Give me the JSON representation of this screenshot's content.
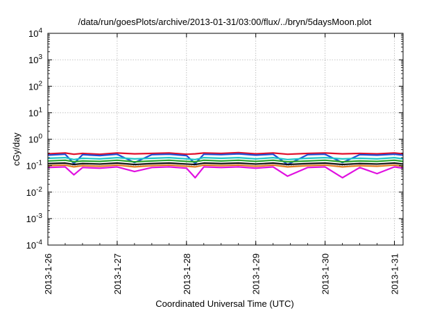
{
  "chart_data": {
    "type": "line",
    "title": "/data/run/goesPlots/archive/2013-01-31/03:00/flux/../bryn/5daysMoon.plot",
    "xlabel": "Coordinated Universal Time (UTC)",
    "ylabel": "cGy/day",
    "x_range": [
      "2013-01-26T00:00",
      "2013-01-31T03:00"
    ],
    "ylim": [
      0.0001,
      10000
    ],
    "y_scale": "log",
    "grid": true,
    "legend": "none",
    "x_ticks": [
      "2013-1-26",
      "2013-1-27",
      "2013-1-28",
      "2013-1-29",
      "2013-1-30",
      "2013-1-31"
    ],
    "y_ticks": [
      {
        "value": 0.0001,
        "base": "10",
        "exp": "-4"
      },
      {
        "value": 0.001,
        "base": "10",
        "exp": "-3"
      },
      {
        "value": 0.01,
        "base": "10",
        "exp": "-2"
      },
      {
        "value": 0.1,
        "base": "10",
        "exp": "-1"
      },
      {
        "value": 1,
        "base": "10",
        "exp": "0"
      },
      {
        "value": 10,
        "base": "10",
        "exp": "1"
      },
      {
        "value": 100,
        "base": "10",
        "exp": "2"
      },
      {
        "value": 1000,
        "base": "10",
        "exp": "3"
      },
      {
        "value": 10000,
        "base": "10",
        "exp": "4"
      }
    ],
    "x": [
      "2013-01-26T00:00",
      "2013-01-26T06:00",
      "2013-01-26T09:00",
      "2013-01-26T12:00",
      "2013-01-26T18:00",
      "2013-01-27T00:00",
      "2013-01-27T06:00",
      "2013-01-27T12:00",
      "2013-01-27T18:00",
      "2013-01-28T00:00",
      "2013-01-28T03:00",
      "2013-01-28T06:00",
      "2013-01-28T12:00",
      "2013-01-28T18:00",
      "2013-01-29T00:00",
      "2013-01-29T06:00",
      "2013-01-29T11:00",
      "2013-01-29T18:00",
      "2013-01-30T00:00",
      "2013-01-30T06:00",
      "2013-01-30T12:00",
      "2013-01-30T18:00",
      "2013-01-31T00:00",
      "2013-01-31T03:00"
    ],
    "series": [
      {
        "color": "#e0102a",
        "values": [
          0.28,
          0.3,
          0.27,
          0.29,
          0.27,
          0.3,
          0.28,
          0.29,
          0.3,
          0.27,
          0.28,
          0.3,
          0.29,
          0.31,
          0.28,
          0.3,
          0.27,
          0.29,
          0.3,
          0.28,
          0.29,
          0.28,
          0.3,
          0.28
        ]
      },
      {
        "color": "#1f4fd6",
        "values": [
          0.25,
          0.27,
          0.12,
          0.26,
          0.24,
          0.27,
          0.13,
          0.26,
          0.27,
          0.24,
          0.12,
          0.27,
          0.26,
          0.28,
          0.25,
          0.27,
          0.11,
          0.26,
          0.27,
          0.13,
          0.26,
          0.25,
          0.27,
          0.25
        ]
      },
      {
        "color": "#1ec6c6",
        "values": [
          0.19,
          0.2,
          0.17,
          0.19,
          0.18,
          0.2,
          0.18,
          0.19,
          0.2,
          0.18,
          0.17,
          0.2,
          0.19,
          0.2,
          0.18,
          0.2,
          0.17,
          0.19,
          0.2,
          0.18,
          0.19,
          0.18,
          0.2,
          0.18
        ]
      },
      {
        "color": "#2aa52a",
        "values": [
          0.15,
          0.16,
          0.14,
          0.15,
          0.145,
          0.16,
          0.14,
          0.15,
          0.16,
          0.145,
          0.14,
          0.16,
          0.15,
          0.16,
          0.145,
          0.16,
          0.14,
          0.15,
          0.16,
          0.14,
          0.15,
          0.145,
          0.16,
          0.145
        ]
      },
      {
        "color": "#111111",
        "values": [
          0.12,
          0.125,
          0.11,
          0.12,
          0.115,
          0.125,
          0.11,
          0.12,
          0.125,
          0.115,
          0.11,
          0.125,
          0.12,
          0.125,
          0.115,
          0.125,
          0.11,
          0.12,
          0.125,
          0.11,
          0.12,
          0.115,
          0.125,
          0.115
        ]
      },
      {
        "color": "#e07a20",
        "values": [
          0.1,
          0.105,
          0.09,
          0.1,
          0.095,
          0.105,
          0.09,
          0.1,
          0.105,
          0.095,
          0.09,
          0.105,
          0.1,
          0.105,
          0.095,
          0.105,
          0.09,
          0.1,
          0.105,
          0.09,
          0.1,
          0.095,
          0.105,
          0.095
        ]
      },
      {
        "color": "#e010e0",
        "values": [
          0.085,
          0.09,
          0.045,
          0.085,
          0.08,
          0.09,
          0.06,
          0.085,
          0.09,
          0.08,
          0.035,
          0.09,
          0.085,
          0.09,
          0.08,
          0.09,
          0.04,
          0.085,
          0.09,
          0.035,
          0.085,
          0.05,
          0.09,
          0.08
        ]
      }
    ]
  }
}
